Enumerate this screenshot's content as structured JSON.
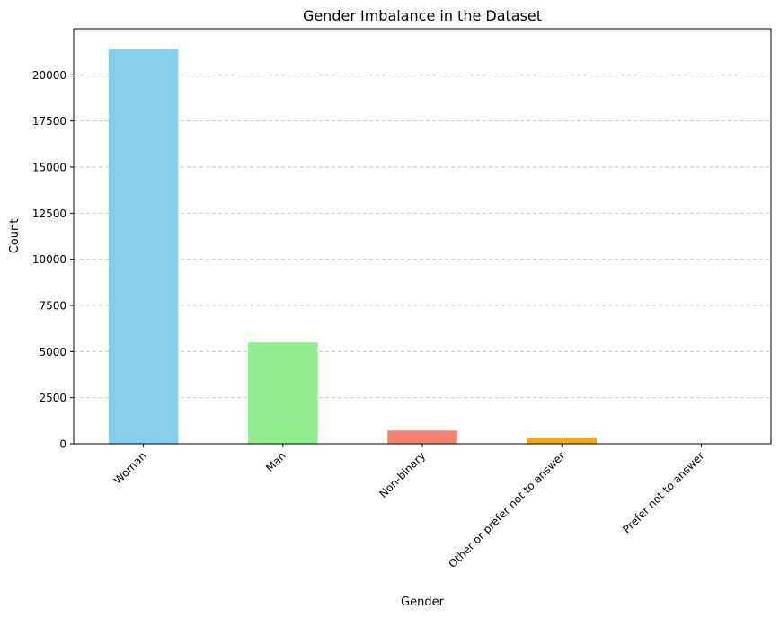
{
  "chart_data": {
    "type": "bar",
    "title": "Gender Imbalance in the Dataset",
    "xlabel": "Gender",
    "ylabel": "Count",
    "categories": [
      "Woman",
      "Man",
      "Non-binary",
      "Other or prefer not to answer",
      "Prefer not to answer"
    ],
    "values": [
      21400,
      5500,
      720,
      290,
      5
    ],
    "bar_colors": [
      "#87ceeb",
      "#90ee90",
      "#fa8072",
      "#ffa500",
      "#9370db"
    ],
    "ylim": [
      0,
      22500
    ],
    "yticks": [
      0,
      2500,
      5000,
      7500,
      10000,
      12500,
      15000,
      17500,
      20000
    ],
    "grid": "y-dashed",
    "legend": "none"
  }
}
